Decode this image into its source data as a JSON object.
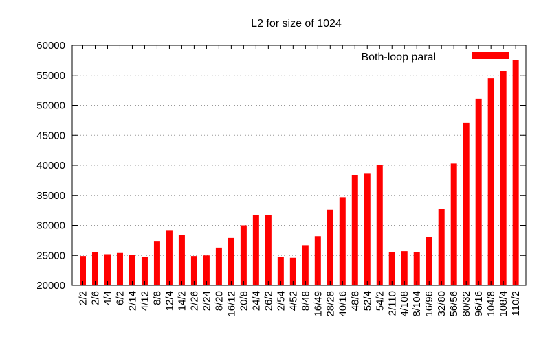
{
  "chart_data": {
    "type": "bar",
    "title": "L2 for size of 1024",
    "xlabel": "",
    "ylabel": "",
    "ylim": [
      20000,
      60000
    ],
    "yticks": [
      20000,
      25000,
      30000,
      35000,
      40000,
      45000,
      50000,
      55000,
      60000
    ],
    "grid": true,
    "legend_position": "top-right",
    "bar_color": "#ff0000",
    "tick_labels": [
      "2/2",
      "2/6",
      "4/4",
      "6/2",
      "2/14",
      "4/12",
      "8/8",
      "12/4",
      "14/2",
      "2/26",
      "2/24",
      "8/20",
      "16/12",
      "20/8",
      "24/4",
      "26/2",
      "2/54",
      "4/52",
      "8/48",
      "16/49",
      "28/28",
      "40/16",
      "48/8",
      "52/4",
      "54/2",
      "2/110",
      "4/108",
      "8/104",
      "16/96",
      "32/80",
      "56/56",
      "80/32",
      "96/16",
      "104/8",
      "108/4",
      "110/2"
    ],
    "series": [
      {
        "name": "Both-loop paral",
        "color": "#ff0000",
        "values": [
          24900,
          25600,
          25200,
          25400,
          25100,
          24800,
          27300,
          29100,
          28400,
          24900,
          25000,
          26300,
          27900,
          30000,
          31700,
          31700,
          24700,
          24600,
          26700,
          28200,
          32600,
          34700,
          38400,
          38700,
          40000,
          25500,
          25700,
          25600,
          28100,
          32800,
          40300,
          47100,
          51100,
          54500,
          55700,
          57500
        ]
      }
    ]
  }
}
